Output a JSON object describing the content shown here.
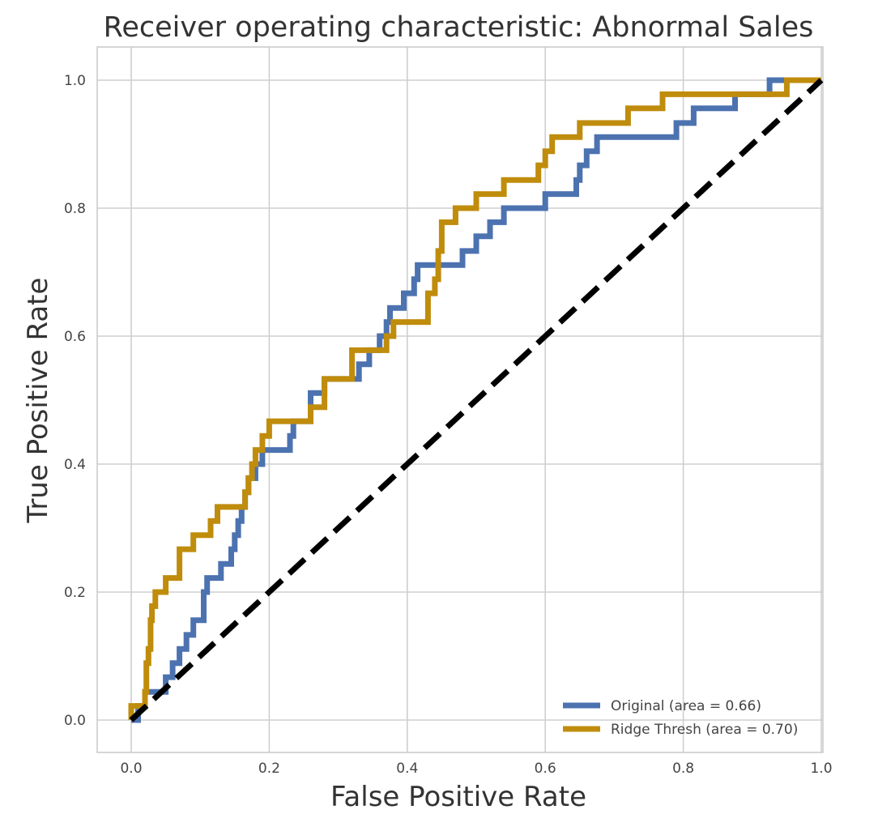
{
  "chart_data": {
    "type": "line",
    "title": "Receiver operating characteristic: Abnormal Sales",
    "xlabel": "False Positive Rate",
    "ylabel": "True Positive Rate",
    "xlim": [
      -0.05,
      1.0
    ],
    "ylim": [
      -0.05,
      1.05
    ],
    "xticks": [
      0.0,
      0.2,
      0.4,
      0.6,
      0.8,
      1.0
    ],
    "yticks": [
      0.0,
      0.2,
      0.4,
      0.6,
      0.8,
      1.0
    ],
    "xtick_labels": [
      "0.0",
      "0.2",
      "0.4",
      "0.6",
      "0.8",
      "1.0"
    ],
    "ytick_labels": [
      "0.0",
      "0.2",
      "0.4",
      "0.6",
      "0.8",
      "1.0"
    ],
    "grid": true,
    "legend_position": "lower-right",
    "series": [
      {
        "name": "Original (area = 0.66)",
        "color": "#4c72b0",
        "style": "solid",
        "x": [
          0.0,
          0.01,
          0.01,
          0.02,
          0.02,
          0.03,
          0.03,
          0.05,
          0.05,
          0.06,
          0.06,
          0.07,
          0.07,
          0.08,
          0.08,
          0.09,
          0.09,
          0.105,
          0.105,
          0.11,
          0.11,
          0.13,
          0.13,
          0.145,
          0.145,
          0.15,
          0.15,
          0.155,
          0.155,
          0.16,
          0.16,
          0.165,
          0.165,
          0.17,
          0.17,
          0.18,
          0.18,
          0.19,
          0.19,
          0.23,
          0.23,
          0.235,
          0.235,
          0.26,
          0.26,
          0.28,
          0.28,
          0.33,
          0.33,
          0.345,
          0.345,
          0.36,
          0.36,
          0.37,
          0.37,
          0.375,
          0.375,
          0.395,
          0.395,
          0.41,
          0.41,
          0.415,
          0.415,
          0.42,
          0.42,
          0.48,
          0.48,
          0.5,
          0.5,
          0.52,
          0.52,
          0.54,
          0.54,
          0.6,
          0.6,
          0.645,
          0.645,
          0.65,
          0.65,
          0.66,
          0.66,
          0.675,
          0.675,
          0.69,
          0.69,
          0.79,
          0.79,
          0.815,
          0.815,
          0.875,
          0.875,
          0.925,
          0.925,
          0.945,
          0.945,
          1.0
        ],
        "y": [
          0.0,
          0.0,
          0.022,
          0.022,
          0.044,
          0.044,
          0.044,
          0.044,
          0.067,
          0.067,
          0.089,
          0.089,
          0.111,
          0.111,
          0.133,
          0.133,
          0.156,
          0.156,
          0.2,
          0.2,
          0.222,
          0.222,
          0.244,
          0.244,
          0.267,
          0.267,
          0.289,
          0.289,
          0.311,
          0.311,
          0.333,
          0.333,
          0.356,
          0.356,
          0.378,
          0.378,
          0.4,
          0.4,
          0.422,
          0.422,
          0.444,
          0.444,
          0.467,
          0.467,
          0.511,
          0.511,
          0.533,
          0.533,
          0.556,
          0.556,
          0.578,
          0.578,
          0.6,
          0.6,
          0.622,
          0.622,
          0.644,
          0.644,
          0.667,
          0.667,
          0.689,
          0.689,
          0.711,
          0.711,
          0.711,
          0.711,
          0.733,
          0.733,
          0.756,
          0.756,
          0.778,
          0.778,
          0.8,
          0.8,
          0.822,
          0.822,
          0.844,
          0.844,
          0.867,
          0.867,
          0.889,
          0.889,
          0.911,
          0.911,
          0.911,
          0.911,
          0.933,
          0.933,
          0.956,
          0.956,
          0.978,
          0.978,
          1.0,
          1.0,
          1.0,
          1.0
        ]
      },
      {
        "name": "Ridge Thresh (area = 0.70)",
        "color": "#c08c0c",
        "style": "solid",
        "x": [
          0.0,
          0.0,
          0.01,
          0.01,
          0.02,
          0.02,
          0.022,
          0.022,
          0.025,
          0.025,
          0.028,
          0.028,
          0.03,
          0.03,
          0.035,
          0.035,
          0.05,
          0.05,
          0.07,
          0.07,
          0.09,
          0.09,
          0.115,
          0.115,
          0.125,
          0.125,
          0.165,
          0.165,
          0.17,
          0.17,
          0.175,
          0.175,
          0.18,
          0.18,
          0.19,
          0.19,
          0.2,
          0.2,
          0.215,
          0.215,
          0.26,
          0.26,
          0.28,
          0.28,
          0.3,
          0.3,
          0.32,
          0.32,
          0.37,
          0.37,
          0.38,
          0.38,
          0.43,
          0.43,
          0.44,
          0.44,
          0.445,
          0.445,
          0.45,
          0.45,
          0.47,
          0.47,
          0.5,
          0.5,
          0.54,
          0.54,
          0.59,
          0.59,
          0.6,
          0.6,
          0.61,
          0.61,
          0.65,
          0.65,
          0.72,
          0.72,
          0.77,
          0.77,
          0.95,
          0.95,
          1.0
        ],
        "y": [
          0.0,
          0.022,
          0.022,
          0.022,
          0.022,
          0.044,
          0.044,
          0.089,
          0.089,
          0.111,
          0.111,
          0.156,
          0.156,
          0.178,
          0.178,
          0.2,
          0.2,
          0.222,
          0.222,
          0.267,
          0.267,
          0.289,
          0.289,
          0.311,
          0.311,
          0.333,
          0.333,
          0.356,
          0.356,
          0.378,
          0.378,
          0.4,
          0.4,
          0.422,
          0.422,
          0.444,
          0.444,
          0.467,
          0.467,
          0.467,
          0.467,
          0.489,
          0.489,
          0.533,
          0.533,
          0.533,
          0.533,
          0.578,
          0.578,
          0.6,
          0.6,
          0.622,
          0.622,
          0.667,
          0.667,
          0.689,
          0.689,
          0.733,
          0.733,
          0.778,
          0.778,
          0.8,
          0.8,
          0.822,
          0.822,
          0.844,
          0.844,
          0.867,
          0.867,
          0.889,
          0.889,
          0.911,
          0.911,
          0.933,
          0.933,
          0.956,
          0.956,
          0.978,
          0.978,
          1.0,
          1.0
        ]
      },
      {
        "name": "",
        "color": "#000000",
        "style": "dashed",
        "x": [
          0.0,
          1.0
        ],
        "y": [
          0.0,
          1.0
        ]
      }
    ]
  }
}
